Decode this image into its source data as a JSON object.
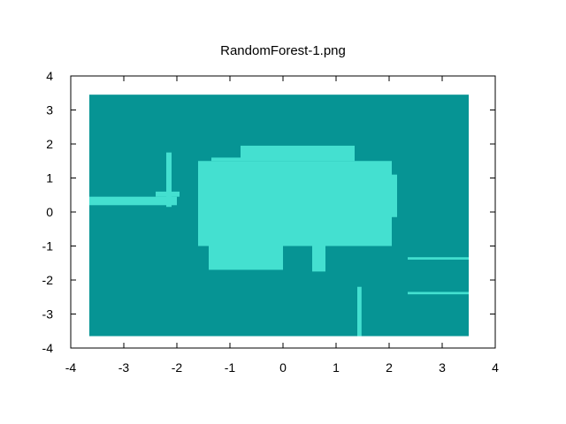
{
  "chart_data": {
    "type": "heatmap",
    "title": "RandomForest-1.png",
    "xlabel": "",
    "ylabel": "",
    "xlim": [
      -4,
      4
    ],
    "ylim": [
      -4,
      4
    ],
    "x_ticks": [
      "-4",
      "-3",
      "-2",
      "-1",
      "0",
      "1",
      "2",
      "3",
      "4"
    ],
    "y_ticks": [
      "-4",
      "-3",
      "-2",
      "-1",
      "0",
      "1",
      "2",
      "3",
      "4"
    ],
    "grid": false,
    "legend": "none",
    "colors": {
      "class_0": "#069494",
      "class_1": "#44e0d0",
      "background": "#ffffff",
      "axis": "#000000"
    },
    "decision_region_extent": {
      "x": [
        -3.65,
        3.5
      ],
      "y": [
        -3.65,
        3.45
      ]
    },
    "class_1_regions": [
      {
        "x": [
          -3.65,
          -2.0
        ],
        "y": [
          0.2,
          0.45
        ]
      },
      {
        "x": [
          -2.4,
          -1.95
        ],
        "y": [
          0.45,
          0.6
        ]
      },
      {
        "x": [
          -2.2,
          -2.1
        ],
        "y": [
          0.15,
          1.75
        ]
      },
      {
        "x": [
          -1.6,
          2.05
        ],
        "y": [
          -1.0,
          1.5
        ]
      },
      {
        "x": [
          -0.8,
          1.35
        ],
        "y": [
          1.5,
          1.95
        ]
      },
      {
        "x": [
          -1.35,
          -0.8
        ],
        "y": [
          1.5,
          1.6
        ]
      },
      {
        "x": [
          -1.4,
          0.0
        ],
        "y": [
          -1.7,
          -1.0
        ]
      },
      {
        "x": [
          0.55,
          0.8
        ],
        "y": [
          -1.75,
          -1.0
        ]
      },
      {
        "x": [
          0.95,
          1.4
        ],
        "y": [
          -1.0,
          -0.6
        ]
      },
      {
        "x": [
          1.4,
          1.48
        ],
        "y": [
          -3.65,
          -2.2
        ]
      },
      {
        "x": [
          2.05,
          2.15
        ],
        "y": [
          -0.15,
          1.1
        ]
      },
      {
        "x": [
          2.35,
          3.5
        ],
        "y": [
          -1.4,
          -1.33
        ]
      },
      {
        "x": [
          2.35,
          3.5
        ],
        "y": [
          -2.42,
          -2.35
        ]
      }
    ]
  }
}
